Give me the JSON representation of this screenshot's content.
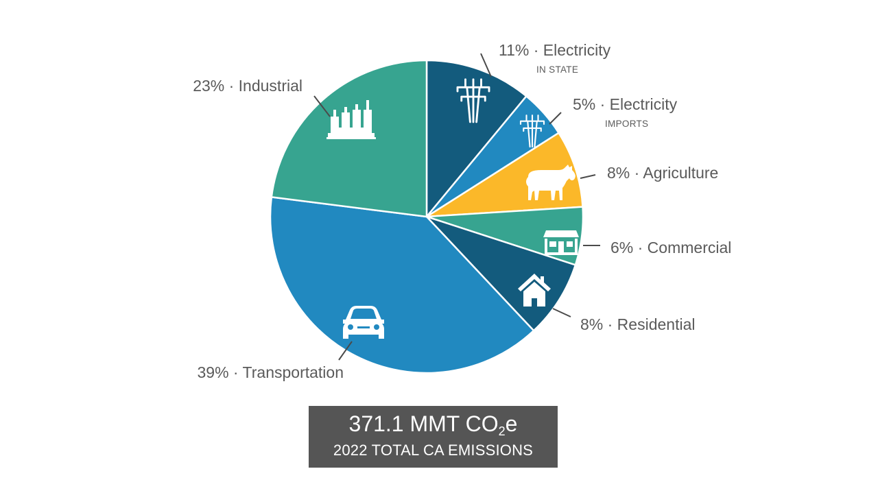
{
  "chart_data": {
    "type": "pie",
    "title": "",
    "start_angle_deg": 0,
    "direction": "clockwise",
    "slices": [
      {
        "name": "Electricity",
        "sub_label": "IN STATE",
        "value": 11,
        "label": "11% · Electricity",
        "color": "#135b7d",
        "icon": "power-tower-icon"
      },
      {
        "name": "Electricity",
        "sub_label": "IMPORTS",
        "value": 5,
        "label": "5% · Electricity",
        "color": "#2189c0",
        "icon": "power-tower-icon"
      },
      {
        "name": "Agriculture",
        "sub_label": "",
        "value": 8,
        "label": "8% · Agriculture",
        "color": "#fbb829",
        "icon": "cow-icon"
      },
      {
        "name": "Commercial",
        "sub_label": "",
        "value": 6,
        "label": "6% · Commercial",
        "color": "#37a490",
        "icon": "storefront-icon"
      },
      {
        "name": "Residential",
        "sub_label": "",
        "value": 8,
        "label": "8% · Residential",
        "color": "#135b7d",
        "icon": "house-icon"
      },
      {
        "name": "Transportation",
        "sub_label": "",
        "value": 39,
        "label": "39% · Transportation",
        "color": "#2189c0",
        "icon": "car-icon"
      },
      {
        "name": "Industrial",
        "sub_label": "",
        "value": 23,
        "label": "23% · Industrial",
        "color": "#37a490",
        "icon": "factory-icon"
      }
    ]
  },
  "summary": {
    "value_prefix": "371.1 MMT CO",
    "value_subscript": "2",
    "value_suffix": "e",
    "caption": "2022 TOTAL CA EMISSIONS"
  }
}
